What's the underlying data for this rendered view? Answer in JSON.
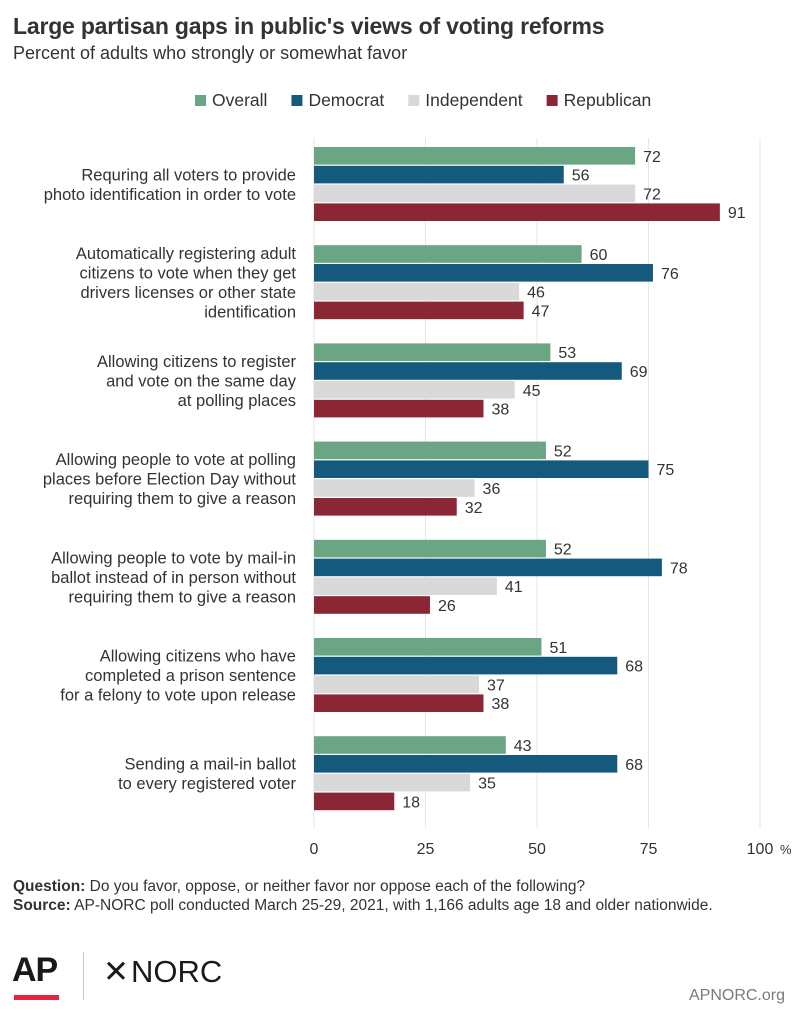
{
  "header": {
    "title": "Large partisan gaps in public's views of voting reforms",
    "subtitle": "Percent of adults who strongly or somewhat favor"
  },
  "chart_data": {
    "type": "bar",
    "orientation": "horizontal",
    "categories": [
      [
        "Requring all voters to provide",
        "photo identification in order to vote"
      ],
      [
        "Automatically registering adult",
        "citizens to vote when they get",
        "drivers licenses or other state",
        "identification"
      ],
      [
        "Allowing citizens to register",
        "and vote on the same day",
        "at polling places"
      ],
      [
        "Allowing people to vote at polling",
        "places before Election Day without",
        "requiring them to give a reason"
      ],
      [
        "Allowing people to vote by mail-in",
        "ballot instead of in person without",
        "requiring them to give a reason"
      ],
      [
        "Allowing citizens who have",
        "completed a prison sentence",
        "for a felony to vote upon release"
      ],
      [
        "Sending a mail-in ballot",
        "to every registered voter"
      ]
    ],
    "series": [
      {
        "name": "Overall",
        "color": "#6aa584",
        "values": [
          72,
          60,
          53,
          52,
          52,
          51,
          43
        ]
      },
      {
        "name": "Democrat",
        "color": "#155a7c",
        "values": [
          56,
          76,
          69,
          75,
          78,
          68,
          68
        ]
      },
      {
        "name": "Independent",
        "color": "#d9d9d9",
        "values": [
          72,
          46,
          45,
          36,
          41,
          37,
          35
        ]
      },
      {
        "name": "Republican",
        "color": "#8b2634",
        "values": [
          91,
          47,
          38,
          32,
          26,
          38,
          18
        ]
      }
    ],
    "xlim": [
      0,
      100
    ],
    "xticks": [
      "0",
      "25",
      "50",
      "75",
      "100"
    ],
    "xtick_suffix": "%",
    "grid": true,
    "legend_position": "top"
  },
  "footer": {
    "question_label": "Question:",
    "question_text": " Do you favor, oppose, or neither favor nor oppose each of the following?",
    "source_label": "Source:",
    "source_text": " AP-NORC poll conducted March 25-29, 2021, with 1,166 adults age 18 and older nationwide.",
    "logo_ap": "AP",
    "logo_norc": "NORC",
    "site": "APNORC.org"
  }
}
